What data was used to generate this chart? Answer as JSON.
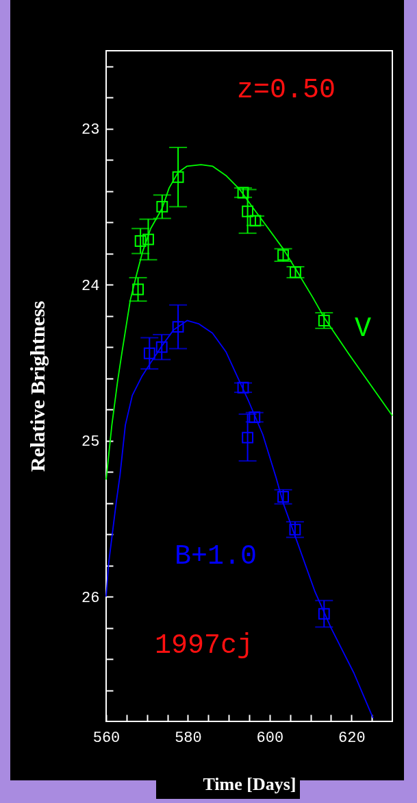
{
  "chart_data": {
    "type": "scatter",
    "xlabel": "Time [Days]",
    "ylabel": "Relative Brightness",
    "xlim": [
      560,
      630
    ],
    "ylim": [
      26.8,
      22.5
    ],
    "xticks": [
      560,
      {
        "value": 565,
        "label": null
      },
      {
        "value": 570,
        "label": null
      },
      {
        "value": 575,
        "label": null
      },
      580,
      {
        "value": 585,
        "label": null
      },
      {
        "value": 590,
        "label": null
      },
      {
        "value": 595,
        "label": null
      },
      600,
      {
        "value": 605,
        "label": null
      },
      {
        "value": 610,
        "label": null
      },
      {
        "value": 615,
        "label": null
      },
      620,
      {
        "value": 625,
        "label": null
      }
    ],
    "yticks": [
      {
        "value": 22.6,
        "label": null
      },
      {
        "value": 22.8,
        "label": null
      },
      23,
      {
        "value": 23.2,
        "label": null
      },
      {
        "value": 23.4,
        "label": null
      },
      {
        "value": 23.6,
        "label": null
      },
      {
        "value": 23.8,
        "label": null
      },
      24,
      {
        "value": 24.2,
        "label": null
      },
      {
        "value": 24.4,
        "label": null
      },
      {
        "value": 24.6,
        "label": null
      },
      {
        "value": 24.8,
        "label": null
      },
      25,
      {
        "value": 25.2,
        "label": null
      },
      {
        "value": 25.4,
        "label": null
      },
      {
        "value": 25.6,
        "label": null
      },
      {
        "value": 25.8,
        "label": null
      },
      26,
      {
        "value": 26.2,
        "label": null
      },
      {
        "value": 26.4,
        "label": null
      },
      {
        "value": 26.6,
        "label": null
      }
    ],
    "grid": false,
    "series": [
      {
        "type": "line",
        "color": "#00ff00",
        "x": [
          560,
          561.4,
          562.8,
          563.9,
          565.9,
          567.5,
          568.9,
          570.9,
          573.7,
          575.4,
          577.6,
          579.8,
          583.2,
          586.0,
          589.3,
          592.7,
          596.0,
          599.4,
          603.3,
          606.6,
          610.5,
          613.3,
          619.5,
          630
        ],
        "values": [
          25.25,
          24.9,
          24.62,
          24.43,
          24.1,
          23.93,
          23.79,
          23.64,
          23.51,
          23.38,
          23.28,
          23.24,
          23.23,
          23.24,
          23.3,
          23.39,
          23.51,
          23.63,
          23.77,
          23.91,
          24.08,
          24.21,
          24.45,
          24.84
        ]
      },
      {
        "marker": "square",
        "color": "#00ff00",
        "x": [
          567.8,
          568.4,
          570.3,
          573.7,
          577.6,
          593.5,
          594.6,
          596.5,
          603.3,
          606.3,
          613.3
        ],
        "values": [
          24.03,
          23.72,
          23.71,
          23.5,
          23.31,
          23.41,
          23.53,
          23.59,
          23.81,
          23.92,
          24.23
        ],
        "errors": [
          0.075,
          0.08,
          0.13,
          0.075,
          0.19,
          0.03,
          0.14,
          0.03,
          0.04,
          0.035,
          0.05
        ]
      },
      {
        "type": "line",
        "color": "#0000ff",
        "x": [
          560,
          560.6,
          562.5,
          563.4,
          564.7,
          566.4,
          568.7,
          570.9,
          573.7,
          576.5,
          579.8,
          582.6,
          586.0,
          589.3,
          592.1,
          594.9,
          598.3,
          601.6,
          603.3,
          606.6,
          611.1,
          615.0,
          620.6,
          625.3
        ],
        "values": [
          26.0,
          25.79,
          25.39,
          25.22,
          24.9,
          24.71,
          24.59,
          24.5,
          24.39,
          24.29,
          24.23,
          24.25,
          24.31,
          24.43,
          24.59,
          24.75,
          24.96,
          25.24,
          25.4,
          25.64,
          25.97,
          26.2,
          26.49,
          26.78
        ]
      },
      {
        "marker": "square",
        "color": "#0000ff",
        "x": [
          570.6,
          573.6,
          577.6,
          593.5,
          594.6,
          596.3,
          603.3,
          606.2,
          613.3
        ],
        "values": [
          24.44,
          24.4,
          24.27,
          24.66,
          24.98,
          24.85,
          25.36,
          25.57,
          26.11
        ],
        "errors": [
          0.1,
          0.08,
          0.14,
          0.03,
          0.15,
          0.03,
          0.045,
          0.05,
          0.085
        ]
      }
    ],
    "annotations": [
      "z=0.50",
      "V",
      "B+1.0",
      "1997cj"
    ]
  }
}
